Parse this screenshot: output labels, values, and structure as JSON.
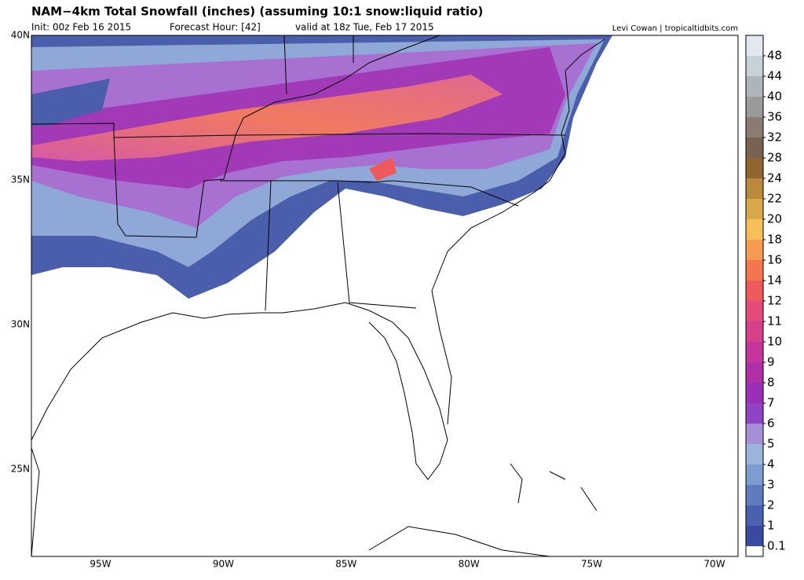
{
  "header": {
    "title": "NAM−4km Total Snowfall (inches) (assuming 10:1 snow:liquid ratio)",
    "init": "Init: 00z Feb 16 2015",
    "forecast_hour": "Forecast Hour: [42]",
    "valid": "valid at 18z Tue, Feb 17 2015",
    "credit": "Levi Cowan | tropicaltidbits.com"
  },
  "map": {
    "lat_labels": [
      "40N",
      "35N",
      "30N",
      "25N"
    ],
    "lon_labels": [
      "95W",
      "90W",
      "85W",
      "80W",
      "75W",
      "70W"
    ]
  },
  "colorbar": {
    "ticks": [
      0.1,
      1,
      2,
      3,
      4,
      5,
      6,
      7,
      8,
      9,
      10,
      11,
      12,
      14,
      16,
      18,
      20,
      22,
      24,
      28,
      32,
      36,
      40,
      44,
      48
    ],
    "colors": [
      "#3a4aa0",
      "#4a62ae",
      "#5e7cbe",
      "#7d9ccf",
      "#9bb4dc",
      "#a58fd6",
      "#8e44c4",
      "#9c2fb8",
      "#b030a8",
      "#c4369c",
      "#d63f8a",
      "#e44a7a",
      "#ee5a5c",
      "#f2774e",
      "#f69a52",
      "#f7be5c",
      "#d9a84a",
      "#b98a3c",
      "#8f6630",
      "#7a6252",
      "#8a7c72",
      "#9a9a9a",
      "#adb4bc",
      "#c8d0d8",
      "#e2e8ee"
    ]
  }
}
